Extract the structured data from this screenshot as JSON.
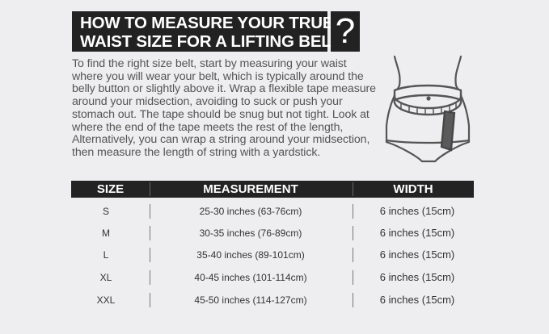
{
  "title": {
    "line1": "HOW TO MEASURE YOUR TRUE",
    "line2": "WAIST SIZE FOR A LIFTING BELT",
    "question_mark": "?"
  },
  "description": "To find the right size belt, start by measuring your waist where you will wear your belt, which is typically around the belly button or slightly above it. Wrap a flexible tape measure around your midsection, avoiding to suck or push your stomach out. The tape should be snug but not tight. Look at where the end of the tape meets the rest of the length, Alternatively, you can wrap a string around your midsection, then measure the length of string with a yardstick.",
  "illustration": {
    "icon": "waist-measuring-tape-icon"
  },
  "table": {
    "headers": [
      "SIZE",
      "MEASUREMENT",
      "WIDTH"
    ],
    "rows": [
      {
        "size": "S",
        "measurement": "25-30 inches (63-76cm)",
        "width": "6 inches (15cm)"
      },
      {
        "size": "M",
        "measurement": "30-35 inches (76-89cm)",
        "width": "6 inches (15cm)"
      },
      {
        "size": "L",
        "measurement": "35-40 inches (89-101cm)",
        "width": "6 inches (15cm)"
      },
      {
        "size": "XL",
        "measurement": "40-45 inches (101-114cm)",
        "width": "6 inches (15cm)"
      },
      {
        "size": "XXL",
        "measurement": "45-50 inches (114-127cm)",
        "width": "6 inches (15cm)"
      }
    ]
  }
}
